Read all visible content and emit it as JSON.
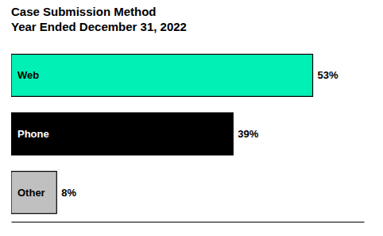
{
  "chart_data": {
    "type": "bar",
    "orientation": "horizontal",
    "title": "Case Submission Method",
    "subtitle": "Year Ended December 31, 2022",
    "categories": [
      "Web",
      "Phone",
      "Other"
    ],
    "values": [
      53,
      39,
      8
    ],
    "value_labels": [
      "53%",
      "39%",
      "8%"
    ],
    "colors": [
      "#00f0b5",
      "#000000",
      "#c0c0c0"
    ],
    "xlim": [
      0,
      62
    ],
    "data_labels": true,
    "tick_labels": false,
    "grid": false
  }
}
